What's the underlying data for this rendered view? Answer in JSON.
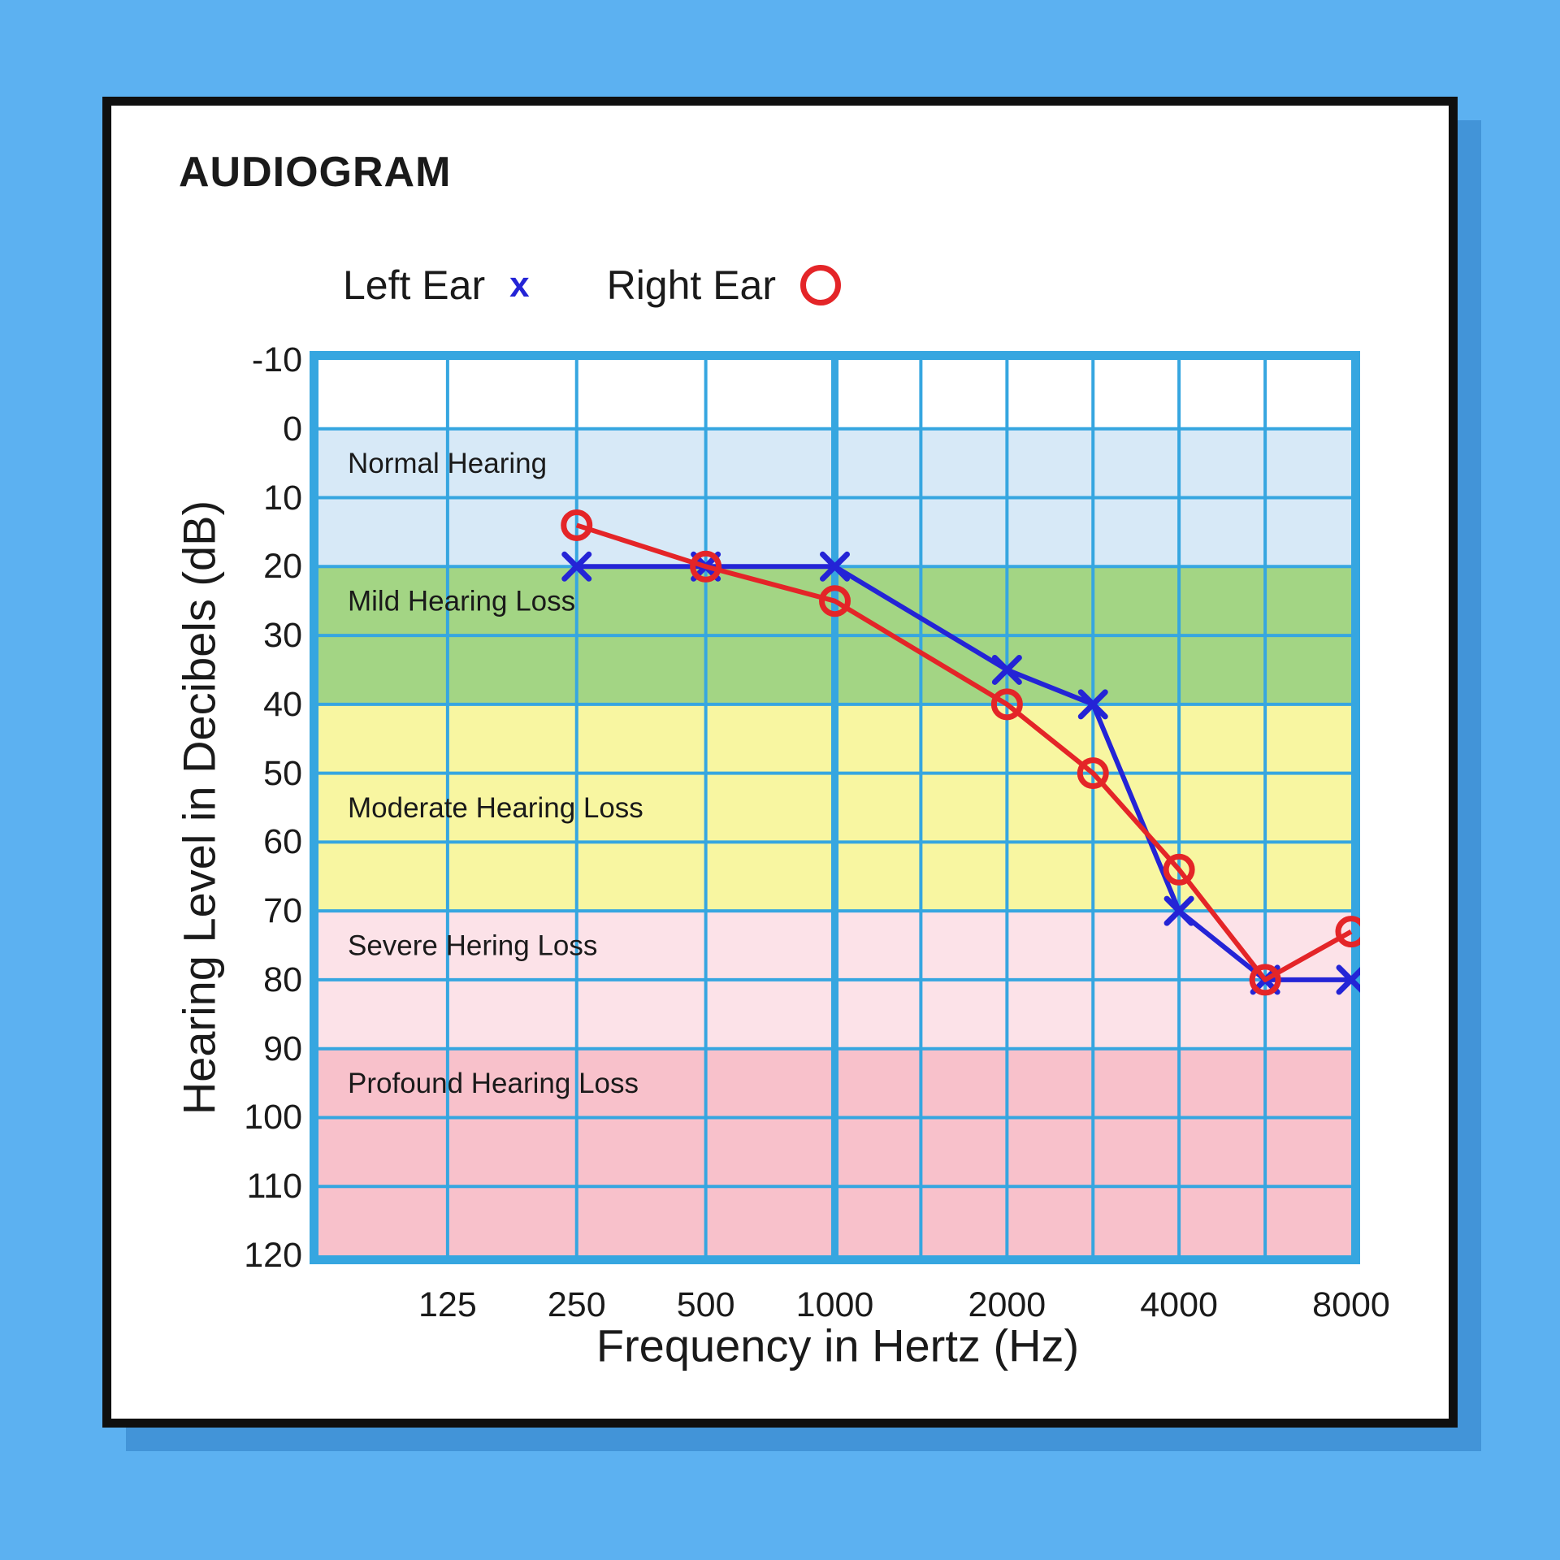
{
  "page": {
    "title": "AUDIOGRAM",
    "legend": {
      "x_char": "x"
    },
    "colors": {
      "background": "#5cb1f1",
      "card_shadow": "#4294d8",
      "card_border": "#0f0f0f",
      "card_fill": "#ffffff",
      "text": "#1a1a1a"
    }
  },
  "chart_data": {
    "type": "line",
    "title": "AUDIOGRAM",
    "xlabel": "Frequency in Hertz (Hz)",
    "ylabel": "Hearing Level in Decibels (dB)",
    "ylim": [
      -10,
      120
    ],
    "y_ticks": [
      -10,
      0,
      10,
      20,
      30,
      40,
      50,
      60,
      70,
      80,
      90,
      100,
      110,
      120
    ],
    "x_ticks": [
      {
        "label": "125",
        "pos": 0.125
      },
      {
        "label": "250",
        "pos": 0.25
      },
      {
        "label": "500",
        "pos": 0.375
      },
      {
        "label": "1000",
        "pos": 0.5
      },
      {
        "label": "2000",
        "pos": 0.6667
      },
      {
        "label": "4000",
        "pos": 0.8333
      },
      {
        "label": "8000",
        "pos": 1.0
      }
    ],
    "x_gridlines": [
      {
        "pos": 0.125
      },
      {
        "pos": 0.25
      },
      {
        "pos": 0.375
      },
      {
        "pos": 0.5,
        "thick": true
      },
      {
        "pos": 0.5833
      },
      {
        "pos": 0.6667
      },
      {
        "pos": 0.75
      },
      {
        "pos": 0.8333
      },
      {
        "pos": 0.9167
      }
    ],
    "grid_color": "#36a6e0",
    "grid_on": true,
    "legend_position": "top",
    "bands": [
      {
        "from": 0,
        "to": 20,
        "color": "#d7e9f7",
        "label": "Normal Hearing",
        "label_db": 5
      },
      {
        "from": 20,
        "to": 40,
        "color": "#a3d584",
        "label": "Mild Hearing Loss",
        "label_db": 25
      },
      {
        "from": 40,
        "to": 70,
        "color": "#f8f6a1",
        "label": "Moderate Hearing Loss",
        "label_db": 55
      },
      {
        "from": 70,
        "to": 90,
        "color": "#fce2e8",
        "label": "Severe Hering Loss",
        "label_db": 75
      },
      {
        "from": 90,
        "to": 120,
        "color": "#f8c1cb",
        "label": "Profound Hearing Loss",
        "label_db": 95
      }
    ],
    "freq_pos": {
      "125": 0.125,
      "250": 0.25,
      "500": 0.375,
      "1000": 0.5,
      "1500": 0.5833,
      "2000": 0.6667,
      "3000": 0.75,
      "4000": 0.8333,
      "6000": 0.9167,
      "8000": 1.0
    },
    "series": [
      {
        "name": "Left Ear",
        "marker": "x",
        "color": "#2424d6",
        "points": [
          [
            250,
            20
          ],
          [
            500,
            20
          ],
          [
            1000,
            20
          ],
          [
            2000,
            35
          ],
          [
            3000,
            40
          ],
          [
            4000,
            70
          ],
          [
            6000,
            80
          ],
          [
            8000,
            80
          ]
        ]
      },
      {
        "name": "Right Ear",
        "marker": "o",
        "color": "#e42528",
        "points": [
          [
            250,
            14
          ],
          [
            500,
            20
          ],
          [
            1000,
            25
          ],
          [
            2000,
            40
          ],
          [
            3000,
            50
          ],
          [
            4000,
            64
          ],
          [
            6000,
            80
          ],
          [
            8000,
            73
          ]
        ]
      }
    ]
  }
}
